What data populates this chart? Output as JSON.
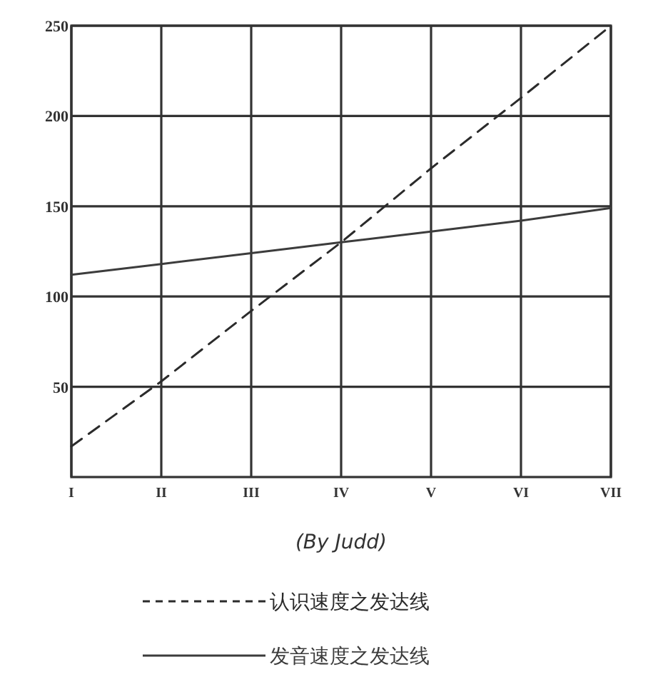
{
  "chart_data": {
    "type": "line",
    "categories": [
      "I",
      "II",
      "III",
      "IV",
      "V",
      "VI",
      "VII"
    ],
    "series": [
      {
        "name": "认识速度之发达线",
        "color": "#2b2b2b",
        "line_style": "dashed",
        "values": [
          17,
          53,
          92,
          130,
          171,
          210,
          250
        ]
      },
      {
        "name": "发音速度之发达线",
        "color": "#3c3c3c",
        "line_style": "solid",
        "values": [
          112,
          118,
          124,
          130,
          136,
          142,
          149
        ]
      }
    ],
    "ylim": [
      0,
      250
    ],
    "yticks": [
      50,
      100,
      150,
      200,
      250
    ],
    "grid": true,
    "legend": "bottom",
    "annotations": [
      "(By Judd)"
    ]
  }
}
